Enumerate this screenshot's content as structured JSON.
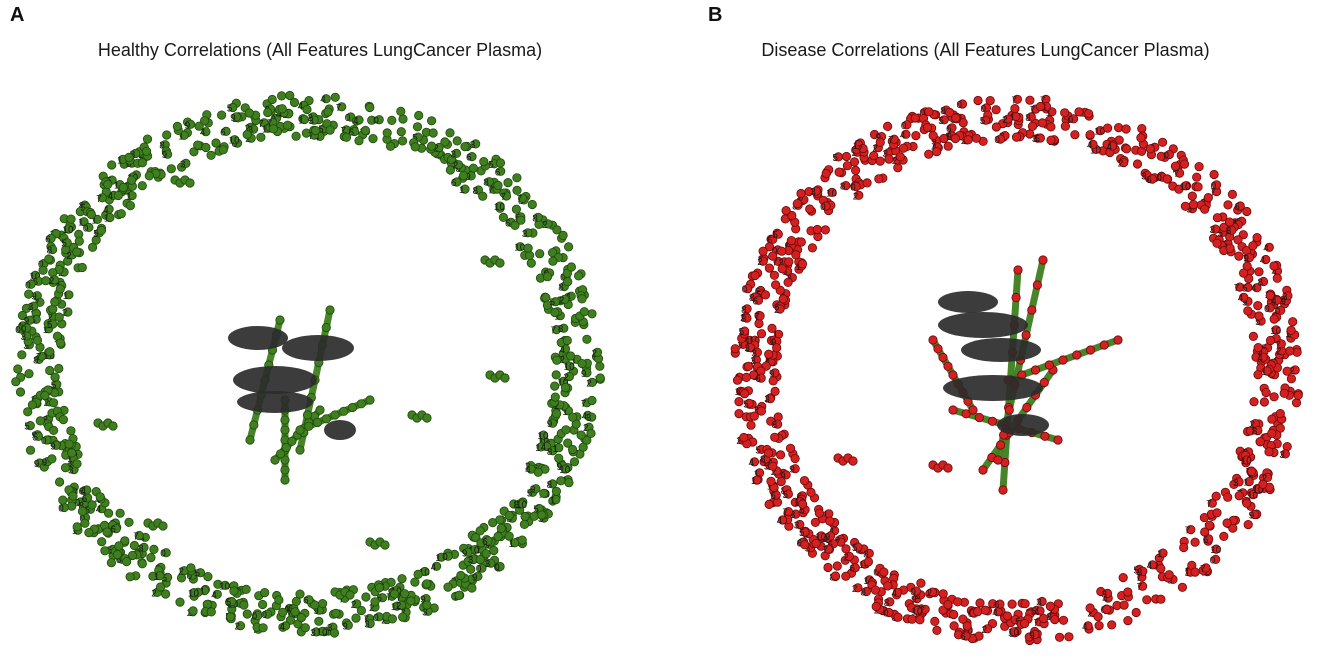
{
  "panels": [
    {
      "letter": "A",
      "title": "Healthy Correlations (All Features LungCancer Plasma)",
      "node_color": "#3f7f1f",
      "node_stroke": "#1f4a0c",
      "edge_color": "#3f7f1f",
      "hub_color": "#2b2b2b"
    },
    {
      "letter": "B",
      "title": "Disease Correlations (All Features LungCancer Plasma)",
      "node_color": "#d42020",
      "node_stroke": "#6a0a0a",
      "edge_color": "#3f7f1f",
      "hub_color": "#2b2b2b"
    }
  ]
}
